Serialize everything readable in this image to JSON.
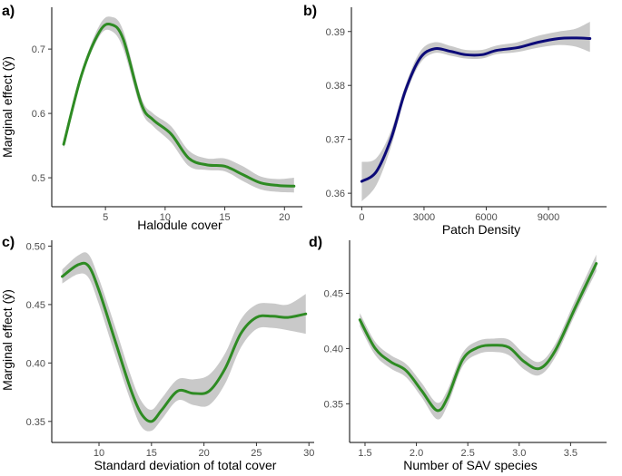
{
  "chart_data": [
    {
      "type": "line",
      "panel": "a)",
      "xlabel": "Halodule cover",
      "ylabel": "Marginal effect (ŷ)",
      "xlim": [
        0.5,
        21.5
      ],
      "ylim": [
        0.455,
        0.765
      ],
      "xticks": [
        5,
        10,
        15,
        20
      ],
      "xtick_labels": [
        "5",
        "10",
        "15",
        "20"
      ],
      "yticks": [
        0.5,
        0.6,
        0.7
      ],
      "ytick_labels": [
        "0.5",
        "0.6",
        "0.7"
      ],
      "line_color": "#2e8b23",
      "band_color": "#c9c9c9",
      "series": [
        {
          "name": "marginal effect",
          "x": [
            1.5,
            3,
            4.5,
            5.5,
            6.5,
            8,
            9,
            10.5,
            12,
            13.5,
            15,
            16.5,
            18,
            19.5,
            20.8
          ],
          "y": [
            0.552,
            0.66,
            0.727,
            0.738,
            0.715,
            0.615,
            0.59,
            0.568,
            0.53,
            0.52,
            0.518,
            0.505,
            0.492,
            0.488,
            0.487
          ],
          "lo": [
            0.545,
            0.655,
            0.72,
            0.728,
            0.7,
            0.605,
            0.58,
            0.555,
            0.518,
            0.512,
            0.51,
            0.495,
            0.482,
            0.478,
            0.477
          ],
          "hi": [
            0.56,
            0.666,
            0.737,
            0.75,
            0.728,
            0.625,
            0.6,
            0.58,
            0.542,
            0.53,
            0.53,
            0.518,
            0.502,
            0.498,
            0.5
          ]
        }
      ]
    },
    {
      "type": "line",
      "panel": "b)",
      "xlabel": "Patch Density",
      "ylabel": "",
      "xlim": [
        -500,
        11800
      ],
      "ylim": [
        0.3575,
        0.3945
      ],
      "xticks": [
        0,
        3000,
        6000,
        9000
      ],
      "xtick_labels": [
        "0",
        "3000",
        "6000",
        "9000"
      ],
      "yticks": [
        0.36,
        0.37,
        0.38,
        0.39
      ],
      "ytick_labels": [
        "0.36",
        "0.37",
        "0.38",
        "0.39"
      ],
      "line_color": "#0c0a78",
      "band_color": "#c9c9c9",
      "series": [
        {
          "name": "marginal effect",
          "x": [
            0,
            700,
            1400,
            2100,
            2800,
            3500,
            4300,
            5000,
            5800,
            6500,
            7500,
            8500,
            9500,
            10300,
            11000
          ],
          "y": [
            0.3622,
            0.364,
            0.37,
            0.379,
            0.385,
            0.3868,
            0.3863,
            0.3857,
            0.3857,
            0.3865,
            0.387,
            0.388,
            0.3887,
            0.3888,
            0.3887
          ],
          "lo": [
            0.3585,
            0.3615,
            0.3685,
            0.378,
            0.384,
            0.386,
            0.3855,
            0.385,
            0.385,
            0.3858,
            0.3862,
            0.387,
            0.3875,
            0.3872,
            0.3862
          ],
          "hi": [
            0.3658,
            0.3665,
            0.3715,
            0.38,
            0.3862,
            0.388,
            0.3873,
            0.3866,
            0.3866,
            0.3874,
            0.388,
            0.3892,
            0.39,
            0.3905,
            0.3918
          ]
        }
      ]
    },
    {
      "type": "line",
      "panel": "c)",
      "xlabel": "Standard deviation of total cover",
      "ylabel": "Marginal effect (ŷ)",
      "xlim": [
        5.5,
        30.5
      ],
      "ylim": [
        0.332,
        0.505
      ],
      "xticks": [
        10,
        15,
        20,
        25,
        30
      ],
      "xtick_labels": [
        "10",
        "15",
        "20",
        "25",
        "30"
      ],
      "yticks": [
        0.35,
        0.4,
        0.45,
        0.5
      ],
      "ytick_labels": [
        "0.35",
        "0.40",
        "0.45",
        "0.50"
      ],
      "line_color": "#2e8b23",
      "band_color": "#c9c9c9",
      "series": [
        {
          "name": "marginal effect",
          "x": [
            6.5,
            8,
            9,
            10,
            11.5,
            13,
            14,
            15,
            16,
            17.5,
            19,
            20.5,
            22,
            23.5,
            25,
            26.5,
            28,
            29.7
          ],
          "y": [
            0.474,
            0.484,
            0.483,
            0.462,
            0.42,
            0.378,
            0.357,
            0.35,
            0.36,
            0.376,
            0.374,
            0.376,
            0.395,
            0.425,
            0.439,
            0.44,
            0.439,
            0.442
          ],
          "lo": [
            0.468,
            0.476,
            0.473,
            0.45,
            0.408,
            0.368,
            0.346,
            0.342,
            0.352,
            0.368,
            0.364,
            0.364,
            0.382,
            0.413,
            0.429,
            0.43,
            0.428,
            0.425
          ],
          "hi": [
            0.48,
            0.492,
            0.493,
            0.472,
            0.432,
            0.39,
            0.368,
            0.36,
            0.37,
            0.386,
            0.386,
            0.39,
            0.408,
            0.437,
            0.45,
            0.451,
            0.45,
            0.459
          ]
        }
      ]
    },
    {
      "type": "line",
      "panel": "d)",
      "xlabel": "Number of SAV species",
      "ylabel": "",
      "xlim": [
        1.35,
        3.85
      ],
      "ylim": [
        0.315,
        0.498
      ],
      "xticks": [
        1.5,
        2.0,
        2.5,
        3.0,
        3.5
      ],
      "xtick_labels": [
        "1.5",
        "2.0",
        "2.5",
        "3.0",
        "3.5"
      ],
      "yticks": [
        0.35,
        0.4,
        0.45
      ],
      "ytick_labels": [
        "0.35",
        "0.40",
        "0.45"
      ],
      "line_color": "#2e8b23",
      "band_color": "#c9c9c9",
      "series": [
        {
          "name": "marginal effect",
          "x": [
            1.45,
            1.6,
            1.75,
            1.9,
            2.05,
            2.2,
            2.3,
            2.45,
            2.6,
            2.75,
            2.9,
            3.05,
            3.2,
            3.35,
            3.55,
            3.75
          ],
          "y": [
            0.426,
            0.4,
            0.388,
            0.38,
            0.362,
            0.344,
            0.355,
            0.39,
            0.401,
            0.403,
            0.401,
            0.388,
            0.382,
            0.398,
            0.438,
            0.477
          ],
          "lo": [
            0.42,
            0.394,
            0.382,
            0.374,
            0.356,
            0.336,
            0.348,
            0.384,
            0.395,
            0.397,
            0.394,
            0.381,
            0.376,
            0.392,
            0.432,
            0.47
          ],
          "hi": [
            0.432,
            0.406,
            0.394,
            0.386,
            0.369,
            0.351,
            0.362,
            0.396,
            0.407,
            0.409,
            0.408,
            0.395,
            0.388,
            0.404,
            0.445,
            0.485
          ]
        }
      ]
    }
  ]
}
